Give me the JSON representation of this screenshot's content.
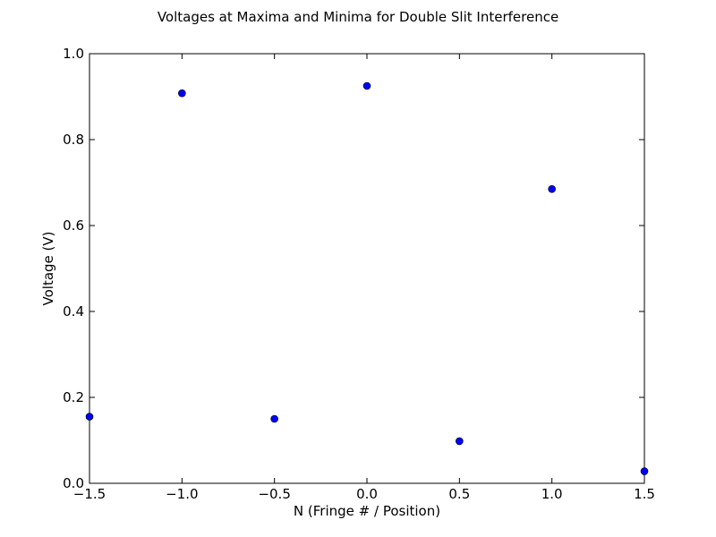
{
  "chart_data": {
    "type": "scatter",
    "title": "Voltages at Maxima and Minima for Double Slit Interference",
    "xlabel": "N (Fringe # / Position)",
    "ylabel": "Voltage (V)",
    "xlim": [
      -1.5,
      1.5
    ],
    "ylim": [
      0.0,
      1.0
    ],
    "xticks": [
      -1.5,
      -1.0,
      -0.5,
      0.0,
      0.5,
      1.0,
      1.5
    ],
    "xtick_labels": [
      "−1.5",
      "−1.0",
      "−0.5",
      "0.0",
      "0.5",
      "1.0",
      "1.5"
    ],
    "yticks": [
      0.0,
      0.2,
      0.4,
      0.6,
      0.8,
      1.0
    ],
    "ytick_labels": [
      "0.0",
      "0.2",
      "0.4",
      "0.6",
      "0.8",
      "1.0"
    ],
    "grid": false,
    "marker_color": "#0000ff",
    "points": [
      {
        "x": -1.5,
        "y": 0.155
      },
      {
        "x": -1.0,
        "y": 0.908
      },
      {
        "x": -0.5,
        "y": 0.15
      },
      {
        "x": 0.0,
        "y": 0.925
      },
      {
        "x": 0.5,
        "y": 0.098
      },
      {
        "x": 1.0,
        "y": 0.685
      },
      {
        "x": 1.5,
        "y": 0.028
      }
    ]
  }
}
